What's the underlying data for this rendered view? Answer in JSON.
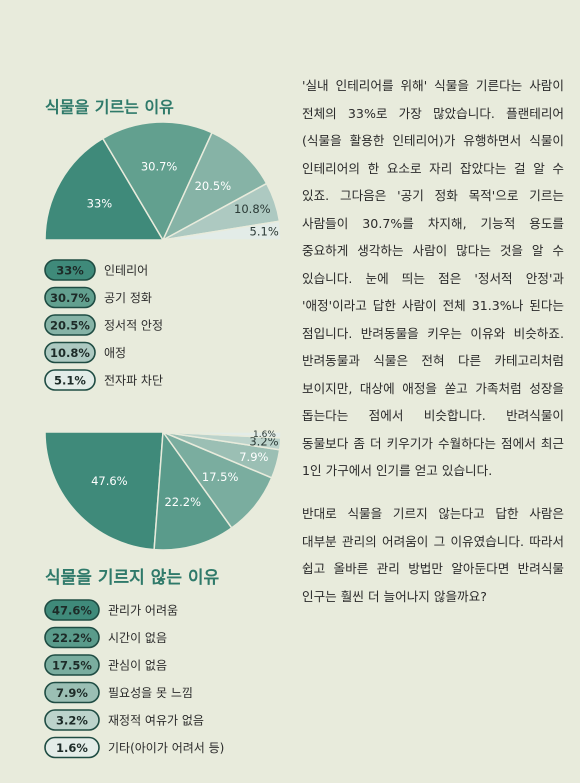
{
  "chart_data": [
    {
      "type": "pie",
      "half": "top",
      "title": "식물을 기르는 이유",
      "categories": [
        "인테리어",
        "공기 정화",
        "정서적 안정",
        "애정",
        "전자파 차단"
      ],
      "values": [
        33,
        30.7,
        20.5,
        10.8,
        5.1
      ],
      "value_labels": [
        "33%",
        "30.7%",
        "20.5%",
        "10.8%",
        "5.1%"
      ],
      "colors": [
        "#3f8a7a",
        "#62a08f",
        "#86b3a6",
        "#adc9c1",
        "#e3ece8"
      ]
    },
    {
      "type": "pie",
      "half": "bottom",
      "title": "식물을 기르지 않는 이유",
      "categories": [
        "관리가 어려움",
        "시간이 없음",
        "관심이 없음",
        "필요성을 못 느낌",
        "재정적 여유가 없음",
        "기타(아이가 어려서 등)"
      ],
      "values": [
        47.6,
        22.2,
        17.5,
        7.9,
        3.2,
        1.6
      ],
      "value_labels": [
        "47.6%",
        "22.2%",
        "17.5%",
        "7.9%",
        "3.2%",
        "1.6%"
      ],
      "colors": [
        "#3f8a7a",
        "#5a9b8b",
        "#7aad9f",
        "#9bbfb4",
        "#bcd3cb",
        "#e3ece8"
      ]
    }
  ],
  "text": {
    "paragraphs": [
      "'실내 인테리어를 위해' 식물을 기른다는 사람이 전체의 33%로 가장 많았습니다. 플랜테리어(식물을 활용한 인테리어)가 유행하면서 식물이 인테리어의 한 요소로 자리 잡았다는 걸 알 수 있죠. 그다음은 '공기 정화 목적'으로 기르는 사람들이 30.7%를 차지해, 기능적 용도를 중요하게 생각하는 사람이 많다는 것을 알 수 있습니다. 눈에 띄는 점은 '정서적 안정'과 '애정'이라고 답한 사람이 전체 31.3%나 된다는 점입니다. 반려동물을 키우는 이유와 비슷하죠. 반려동물과 식물은 전혀 다른 카테고리처럼 보이지만, 대상에 애정을 쏟고 가족처럼 성장을 돕는다는 점에서 비슷합니다. 반려식물이 동물보다 좀 더 키우기가 수월하다는 점에서 최근 1인 가구에서 인기를 얻고 있습니다.",
      "반대로 식물을 기르지 않는다고 답한 사람은 대부분 관리의 어려움이 그 이유였습니다. 따라서 쉽고 올바른 관리 방법만 알아둔다면 반려식물 인구는 훨씬 더 늘어나지 않을까요?"
    ]
  }
}
